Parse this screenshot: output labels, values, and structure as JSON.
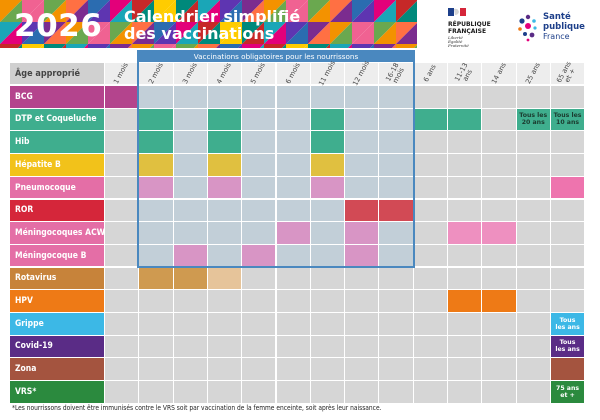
{
  "colors": {
    "grid_empty": "#d6d6d6",
    "grid_infant": "#c2cfd8",
    "grid_line": "#ffffff",
    "infant_border": "#4a88bf",
    "banner_palette": [
      "#e3007a",
      "#f39200",
      "#ffcc00",
      "#6aa84f",
      "#1aa6b7",
      "#2b6cb0",
      "#7b2c8f",
      "#c62828",
      "#f06292",
      "#00897b",
      "#ff7043",
      "#5e35b1"
    ]
  },
  "header": {
    "year": "2026",
    "title_line1": "Calendrier simplifié",
    "title_line2": "des vaccinations",
    "rf_line1": "RÉPUBLIQUE",
    "rf_line2": "FRANÇAISE",
    "rf_motto": "Liberté Égalité Fraternité",
    "sp_line1": "Santé",
    "sp_line2": "publique",
    "sp_line3": "France"
  },
  "table": {
    "age_header": "Âge approprié",
    "infant_title": "Vaccinations obligatoires pour les nourrissons",
    "columns": [
      "1 mois",
      "2 mois",
      "3 mois",
      "4 mois",
      "5 mois",
      "6 mois",
      "11 mois",
      "12 mois",
      "16-18\nmois",
      "6 ans",
      "11-13\nans",
      "14 ans",
      "25 ans",
      "65 ans\net +"
    ],
    "rows": [
      {
        "label": "BCG",
        "color": "#b4448d",
        "cells": [
          {
            "col": 0,
            "color": "#b4448d"
          }
        ]
      },
      {
        "label": "DTP et Coqueluche",
        "color": "#3fae8e",
        "cells": [
          {
            "col": 1,
            "color": "#3fae8e"
          },
          {
            "col": 3,
            "color": "#3fae8e"
          },
          {
            "col": 6,
            "color": "#3fae8e"
          },
          {
            "col": 9,
            "color": "#3fae8e"
          },
          {
            "col": 10,
            "color": "#3fae8e"
          },
          {
            "col": 12,
            "color": "#3fae8e",
            "text": "Tous les\n20 ans",
            "text_color": "#1b3b2f"
          },
          {
            "col": 13,
            "color": "#3fae8e",
            "text": "Tous les\n10 ans",
            "text_color": "#1b3b2f"
          }
        ]
      },
      {
        "label": "Hib",
        "color": "#3fae8e",
        "cells": [
          {
            "col": 1,
            "color": "#3fae8e"
          },
          {
            "col": 3,
            "color": "#3fae8e"
          },
          {
            "col": 6,
            "color": "#3fae8e"
          }
        ]
      },
      {
        "label": "Hépatite B",
        "color": "#f2c21a",
        "cells": [
          {
            "col": 1,
            "color": "#e0c040"
          },
          {
            "col": 3,
            "color": "#e0c040"
          },
          {
            "col": 6,
            "color": "#e0c040"
          }
        ]
      },
      {
        "label": "Pneumocoque",
        "color": "#e46ea6",
        "cells": [
          {
            "col": 1,
            "color": "#d895c5"
          },
          {
            "col": 3,
            "color": "#d895c5"
          },
          {
            "col": 6,
            "color": "#d895c5"
          },
          {
            "col": 13,
            "color": "#ee74ae"
          }
        ]
      },
      {
        "label": "ROR",
        "color": "#d5263a",
        "cells": [
          {
            "col": 7,
            "color": "#d24a55"
          },
          {
            "col": 8,
            "color": "#d24a55"
          }
        ]
      },
      {
        "label": "Méningocoques ACWY",
        "color": "#e46ea6",
        "cells": [
          {
            "col": 5,
            "color": "#d895c5"
          },
          {
            "col": 7,
            "color": "#d895c5"
          },
          {
            "col": 10,
            "color": "#ee90c0"
          },
          {
            "col": 11,
            "color": "#ee90c0"
          }
        ]
      },
      {
        "label": "Méningocoque B",
        "color": "#e46ea6",
        "cells": [
          {
            "col": 2,
            "color": "#d895c5"
          },
          {
            "col": 4,
            "color": "#d895c5"
          },
          {
            "col": 7,
            "color": "#d895c5"
          }
        ]
      },
      {
        "label": "Rotavirus",
        "color": "#c7833a",
        "cells": [
          {
            "col": 1,
            "color": "#cf9a50"
          },
          {
            "col": 2,
            "color": "#cf9a50"
          },
          {
            "col": 3,
            "color": "#e6c49a"
          }
        ]
      },
      {
        "label": "HPV",
        "color": "#ee7a16",
        "cells": [
          {
            "col": 10,
            "color": "#ee7a16"
          },
          {
            "col": 11,
            "color": "#ee7a16"
          }
        ]
      },
      {
        "label": "Grippe",
        "color": "#3cb8e6",
        "cells": [
          {
            "col": 13,
            "color": "#3cb8e6",
            "text": "Tous\nles ans",
            "text_color": "#ffffff"
          }
        ]
      },
      {
        "label": "Covid-19",
        "color": "#5a2c86",
        "cells": [
          {
            "col": 13,
            "color": "#5a2c86",
            "text": "Tous\nles ans",
            "text_color": "#ffffff"
          }
        ]
      },
      {
        "label": "Zona",
        "color": "#a4543f",
        "cells": [
          {
            "col": 13,
            "color": "#a4543f"
          }
        ]
      },
      {
        "label": "VRS*",
        "color": "#2b8a3e",
        "cells": [
          {
            "col": 13,
            "color": "#2b8a3e",
            "text": "75 ans\net +",
            "text_color": "#ffffff"
          }
        ]
      }
    ]
  },
  "footnote": "*Les nourrissons doivent être immunisés contre le VRS soit par vaccination de la femme enceinte, soit après leur naissance."
}
